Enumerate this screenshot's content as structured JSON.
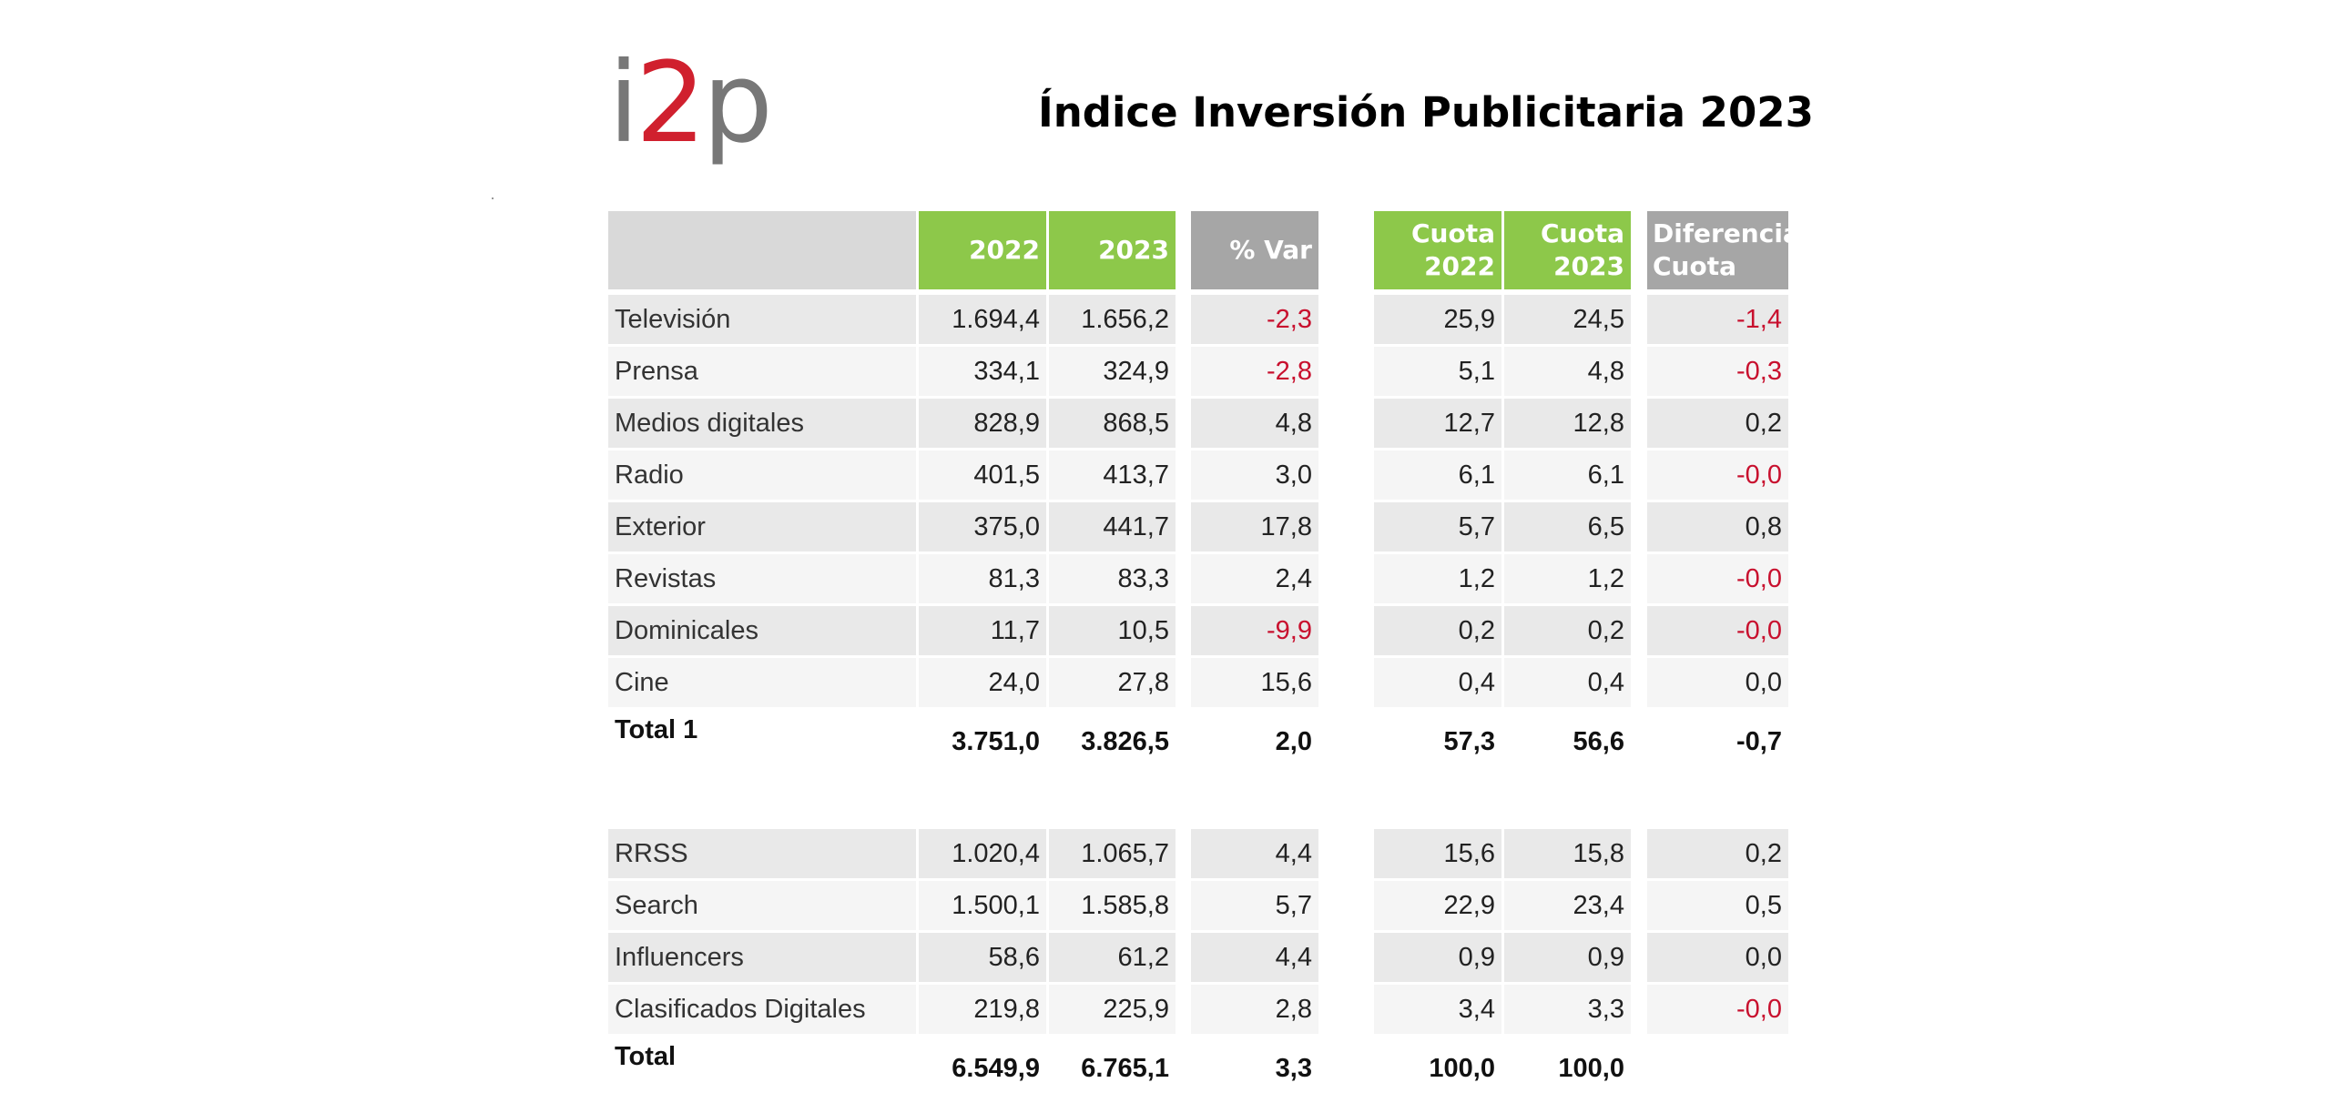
{
  "logo": {
    "part1": "i",
    "part2": "2",
    "part3": "p"
  },
  "title": "Índice Inversión Publicitaria 2023",
  "headers": {
    "y2022": "2022",
    "y2023": "2023",
    "var": "% Var",
    "cuota2022_l1": "Cuota",
    "cuota2022_l2": "2022",
    "cuota2023_l1": "Cuota",
    "cuota2023_l2": "2023",
    "dif_l1": "Diferencia",
    "dif_l2": "Cuota"
  },
  "rows_group1": [
    {
      "label": "Televisión",
      "v2022": "1.694,4",
      "v2023": "1.656,2",
      "var": "-2,3",
      "c2022": "25,9",
      "c2023": "24,5",
      "dif": "-1,4"
    },
    {
      "label": "Prensa",
      "v2022": "334,1",
      "v2023": "324,9",
      "var": "-2,8",
      "c2022": "5,1",
      "c2023": "4,8",
      "dif": "-0,3"
    },
    {
      "label": "Medios digitales",
      "v2022": "828,9",
      "v2023": "868,5",
      "var": "4,8",
      "c2022": "12,7",
      "c2023": "12,8",
      "dif": "0,2"
    },
    {
      "label": "Radio",
      "v2022": "401,5",
      "v2023": "413,7",
      "var": "3,0",
      "c2022": "6,1",
      "c2023": "6,1",
      "dif": "-0,0"
    },
    {
      "label": "Exterior",
      "v2022": "375,0",
      "v2023": "441,7",
      "var": "17,8",
      "c2022": "5,7",
      "c2023": "6,5",
      "dif": "0,8"
    },
    {
      "label": "Revistas",
      "v2022": "81,3",
      "v2023": "83,3",
      "var": "2,4",
      "c2022": "1,2",
      "c2023": "1,2",
      "dif": "-0,0"
    },
    {
      "label": "Dominicales",
      "v2022": "11,7",
      "v2023": "10,5",
      "var": "-9,9",
      "c2022": "0,2",
      "c2023": "0,2",
      "dif": "-0,0"
    },
    {
      "label": "Cine",
      "v2022": "24,0",
      "v2023": "27,8",
      "var": "15,6",
      "c2022": "0,4",
      "c2023": "0,4",
      "dif": "0,0"
    }
  ],
  "total1": {
    "label": "Total 1",
    "v2022": "3.751,0",
    "v2023": "3.826,5",
    "var": "2,0",
    "c2022": "57,3",
    "c2023": "56,6",
    "dif": "-0,7"
  },
  "rows_group2": [
    {
      "label": "RRSS",
      "v2022": "1.020,4",
      "v2023": "1.065,7",
      "var": "4,4",
      "c2022": "15,6",
      "c2023": "15,8",
      "dif": "0,2"
    },
    {
      "label": "Search",
      "v2022": "1.500,1",
      "v2023": "1.585,8",
      "var": "5,7",
      "c2022": "22,9",
      "c2023": "23,4",
      "dif": "0,5"
    },
    {
      "label": "Influencers",
      "v2022": "58,6",
      "v2023": "61,2",
      "var": "4,4",
      "c2022": "0,9",
      "c2023": "0,9",
      "dif": "0,0"
    },
    {
      "label": "Clasificados Digitales",
      "v2022": "219,8",
      "v2023": "225,9",
      "var": "2,8",
      "c2022": "3,4",
      "c2023": "3,3",
      "dif": "-0,0"
    }
  ],
  "total": {
    "label": "Total",
    "v2022": "6.549,9",
    "v2023": "6.765,1",
    "var": "3,3",
    "c2022": "100,0",
    "c2023": "100,0",
    "dif": ""
  },
  "colors": {
    "header_green": "#8dc84a",
    "header_grey": "#a6a6a6",
    "negative_red": "#c8102e",
    "logo_red": "#d0202e",
    "logo_grey": "#777777"
  }
}
